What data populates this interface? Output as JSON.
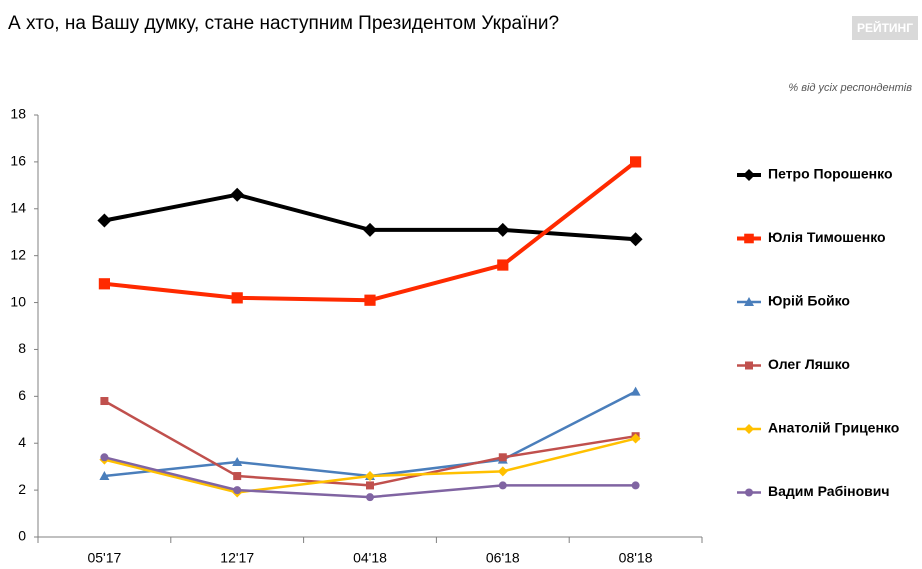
{
  "chart_data": {
    "type": "line",
    "title": "А хто, на Вашу думку, стане наступним Президентом України?",
    "logo": "РЕЙТИНГ",
    "subtitle": "% від усіх респондентів",
    "categories": [
      "05'17",
      "12'17",
      "04'18",
      "06'18",
      "08'18"
    ],
    "ylim": [
      0,
      18
    ],
    "yticks": [
      0,
      2,
      4,
      6,
      8,
      10,
      12,
      14,
      16,
      18
    ],
    "grid": false,
    "legend": "right",
    "series": [
      {
        "name": "Петро Порошенко",
        "color": "#000000",
        "marker": "diamond",
        "values": [
          13.5,
          14.6,
          13.1,
          13.1,
          12.7
        ]
      },
      {
        "name": "Юлія Тимошенко",
        "color": "#ff2a00",
        "marker": "square",
        "values": [
          10.8,
          10.2,
          10.1,
          11.6,
          16.0
        ]
      },
      {
        "name": "Юрій Бойко",
        "color": "#4a7ebb",
        "marker": "triangle",
        "values": [
          2.6,
          3.2,
          2.6,
          3.3,
          6.2
        ]
      },
      {
        "name": "Олег Ляшко",
        "color": "#c0504d",
        "marker": "square",
        "values": [
          5.8,
          2.6,
          2.2,
          3.4,
          4.3
        ]
      },
      {
        "name": "Анатолій Гриценко",
        "color": "#ffc000",
        "marker": "diamond",
        "values": [
          3.3,
          1.9,
          2.6,
          2.8,
          4.2
        ]
      },
      {
        "name": "Вадим Рабінович",
        "color": "#8064a2",
        "marker": "circle",
        "values": [
          3.4,
          2.0,
          1.7,
          2.2,
          2.2
        ]
      }
    ]
  }
}
